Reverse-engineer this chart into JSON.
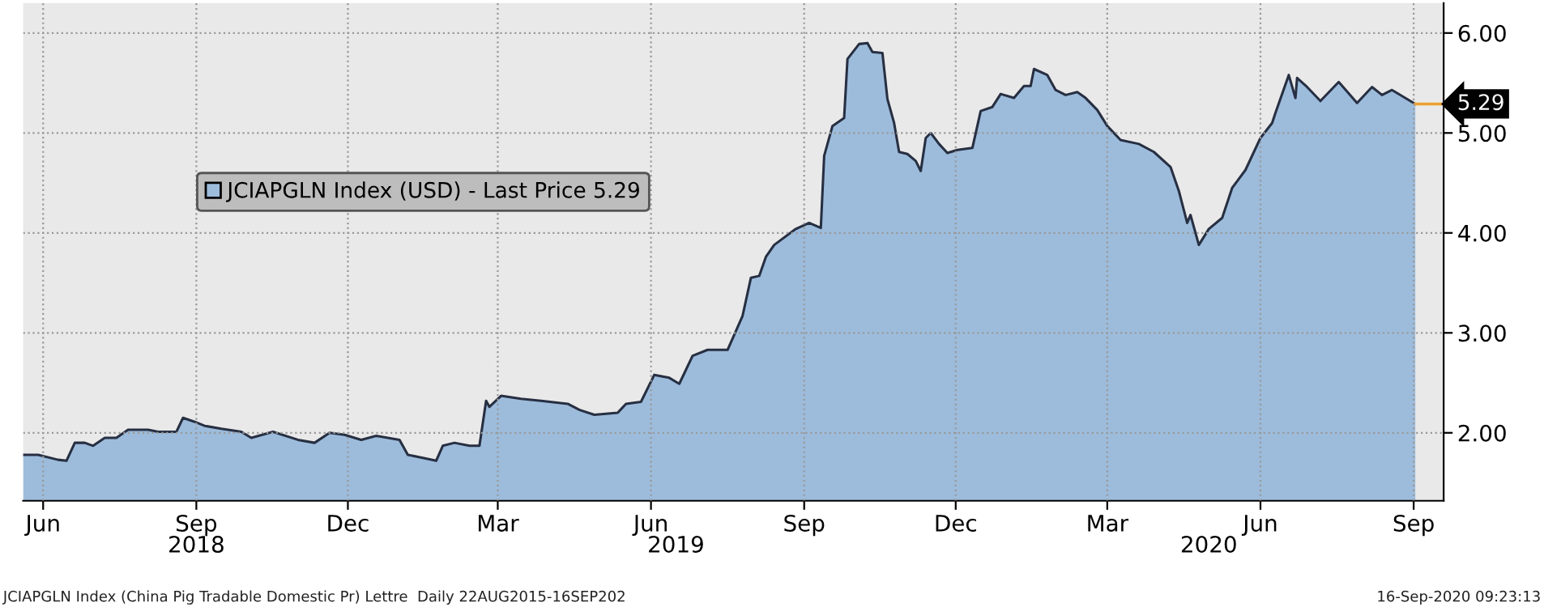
{
  "chart_data": {
    "type": "area",
    "x": [
      "2018-06-03",
      "2018-06-12",
      "2018-06-24",
      "2018-06-29",
      "2018-07-04",
      "2018-07-10",
      "2018-07-15",
      "2018-07-22",
      "2018-07-29",
      "2018-08-05",
      "2018-08-17",
      "2018-08-23",
      "2018-09-03",
      "2018-09-07",
      "2018-09-14",
      "2018-09-20",
      "2018-09-30",
      "2018-10-12",
      "2018-10-18",
      "2018-10-31",
      "2018-11-15",
      "2018-11-25",
      "2018-12-04",
      "2018-12-13",
      "2018-12-23",
      "2019-01-01",
      "2019-01-15",
      "2019-01-20",
      "2019-01-29",
      "2019-02-06",
      "2019-02-10",
      "2019-02-17",
      "2019-02-26",
      "2019-03-04",
      "2019-03-08",
      "2019-03-10",
      "2019-03-17",
      "2019-03-29",
      "2019-04-10",
      "2019-04-26",
      "2019-05-03",
      "2019-05-12",
      "2019-05-26",
      "2019-05-31",
      "2019-06-09",
      "2019-06-17",
      "2019-06-26",
      "2019-07-02",
      "2019-07-10",
      "2019-07-19",
      "2019-07-31",
      "2019-08-09",
      "2019-08-14",
      "2019-08-19",
      "2019-08-23",
      "2019-08-28",
      "2019-09-10",
      "2019-09-18",
      "2019-09-25",
      "2019-09-27",
      "2019-10-02",
      "2019-10-09",
      "2019-10-11",
      "2019-10-18",
      "2019-10-23",
      "2019-10-26",
      "2019-11-01",
      "2019-11-04",
      "2019-11-08",
      "2019-11-11",
      "2019-11-16",
      "2019-11-21",
      "2019-11-24",
      "2019-11-27",
      "2019-11-30",
      "2019-12-05",
      "2019-12-10",
      "2019-12-16",
      "2019-12-25",
      "2019-12-30",
      "2020-01-06",
      "2020-01-11",
      "2020-01-19",
      "2020-01-25",
      "2020-01-29",
      "2020-01-31",
      "2020-02-08",
      "2020-02-13",
      "2020-02-19",
      "2020-02-26",
      "2020-03-02",
      "2020-03-09",
      "2020-03-15",
      "2020-03-23",
      "2020-04-03",
      "2020-04-12",
      "2020-04-22",
      "2020-04-27",
      "2020-05-02",
      "2020-05-04",
      "2020-05-09",
      "2020-05-15",
      "2020-05-23",
      "2020-05-29",
      "2020-06-06",
      "2020-06-15",
      "2020-06-22",
      "2020-06-24",
      "2020-07-02",
      "2020-07-06",
      "2020-07-07",
      "2020-07-13",
      "2020-07-21",
      "2020-08-01",
      "2020-08-12",
      "2020-08-21",
      "2020-08-27",
      "2020-09-02",
      "2020-09-16"
    ],
    "series": [
      {
        "name": "JCIAPGLN Index (USD) - Last Price 5.29",
        "color": "#9dbcdc",
        "values": [
          1.78,
          1.78,
          1.73,
          1.72,
          1.9,
          1.9,
          1.87,
          1.95,
          1.95,
          2.03,
          2.03,
          2.01,
          2.01,
          2.15,
          2.11,
          2.07,
          2.04,
          2.01,
          1.95,
          2.01,
          1.93,
          1.9,
          2.0,
          1.98,
          1.93,
          1.97,
          1.93,
          1.78,
          1.75,
          1.72,
          1.87,
          1.9,
          1.87,
          1.87,
          2.32,
          2.26,
          2.37,
          2.34,
          2.32,
          2.29,
          2.23,
          2.18,
          2.2,
          2.29,
          2.31,
          2.58,
          2.55,
          2.49,
          2.77,
          2.83,
          2.83,
          3.17,
          3.55,
          3.57,
          3.76,
          3.88,
          4.04,
          4.1,
          4.05,
          4.77,
          5.07,
          5.15,
          5.74,
          5.89,
          5.9,
          5.81,
          5.8,
          5.34,
          5.1,
          4.81,
          4.79,
          4.72,
          4.62,
          4.95,
          5.0,
          4.89,
          4.8,
          4.83,
          4.85,
          5.22,
          5.26,
          5.39,
          5.35,
          5.47,
          5.47,
          5.64,
          5.58,
          5.43,
          5.38,
          5.41,
          5.35,
          5.23,
          5.07,
          4.93,
          4.89,
          4.81,
          4.66,
          4.42,
          4.1,
          4.18,
          3.88,
          4.04,
          4.15,
          4.45,
          4.63,
          4.95,
          5.1,
          5.2,
          5.58,
          5.35,
          5.55,
          5.46,
          5.32,
          5.51,
          5.3,
          5.46,
          5.38,
          5.43,
          5.29
        ]
      }
    ],
    "xlim": [
      "2018-06-03",
      "2020-10-03"
    ],
    "xticks": [
      {
        "value": "2018-06-15",
        "label": "Jun"
      },
      {
        "value": "2018-09-15",
        "label": "Sep"
      },
      {
        "value": "2018-12-15",
        "label": "Dec"
      },
      {
        "value": "2019-03-15",
        "label": "Mar"
      },
      {
        "value": "2019-06-15",
        "label": "Jun"
      },
      {
        "value": "2019-09-15",
        "label": "Sep"
      },
      {
        "value": "2019-12-15",
        "label": "Dec"
      },
      {
        "value": "2020-03-15",
        "label": "Mar"
      },
      {
        "value": "2020-06-15",
        "label": "Jun"
      },
      {
        "value": "2020-09-15",
        "label": "Sep"
      }
    ],
    "x2lim": [
      "2018-06-03",
      "2020-10-03"
    ],
    "x2ticks": [
      {
        "value": "2018-09-15",
        "label": "2018"
      },
      {
        "value": "2019-06-30",
        "label": "2019"
      },
      {
        "value": "2020-05-15",
        "label": "2020"
      }
    ],
    "ylim": [
      1.32,
      6.3
    ],
    "yticks": [
      {
        "value": 2,
        "label": "2.00"
      },
      {
        "value": 3,
        "label": "3.00"
      },
      {
        "value": 4,
        "label": "4.00"
      },
      {
        "value": 5,
        "label": "5.00"
      },
      {
        "value": 6,
        "label": "6.00"
      }
    ],
    "ref_lines": [
      {
        "axis": "y",
        "value": 5.29,
        "label": "5.29",
        "color": "#f0a030"
      }
    ],
    "grid": true,
    "legend": "top left",
    "annotations": [
      "JCIAPGLN Index (China Pig Tradable Domestic Pr) Lettre  Daily 22AUG2015-16SEP202",
      "16-Sep-2020 09:23:13"
    ]
  }
}
